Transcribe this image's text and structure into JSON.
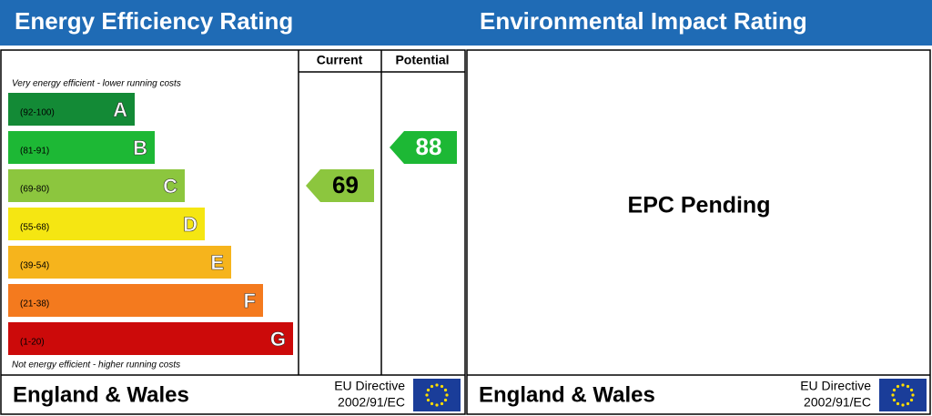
{
  "energy": {
    "title": "Energy Efficiency Rating",
    "columns": [
      "Current",
      "Potential"
    ],
    "top_note": "Very energy efficient - lower running costs",
    "bottom_note": "Not energy efficient - higher running costs",
    "bands": [
      {
        "range": "(92-100)",
        "letter": "A",
        "color": "#138a36"
      },
      {
        "range": "(81-91)",
        "letter": "B",
        "color": "#1db835"
      },
      {
        "range": "(69-80)",
        "letter": "C",
        "color": "#8cc63e"
      },
      {
        "range": "(55-68)",
        "letter": "D",
        "color": "#f5e612"
      },
      {
        "range": "(39-54)",
        "letter": "E",
        "color": "#f6b41c"
      },
      {
        "range": "(21-38)",
        "letter": "F",
        "color": "#f47a1e"
      },
      {
        "range": "(1-20)",
        "letter": "G",
        "color": "#cc0a0a"
      }
    ],
    "current": 69,
    "potential": 88,
    "footer": {
      "region": "England & Wales",
      "directive": "EU Directive",
      "code": "2002/91/EC"
    }
  },
  "environmental": {
    "title": "Environmental Impact Rating",
    "status": "EPC Pending",
    "footer": {
      "region": "England & Wales",
      "directive": "EU Directive",
      "code": "2002/91/EC"
    }
  }
}
